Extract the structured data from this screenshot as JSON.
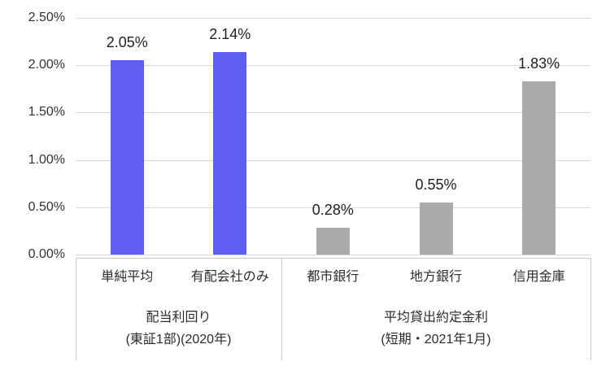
{
  "chart_data": {
    "type": "bar",
    "title": "",
    "xlabel": "",
    "ylabel": "",
    "ylim": [
      0,
      2.5
    ],
    "grid": true,
    "legend": "none",
    "value_format": "percent",
    "yticks": [
      {
        "label": "2.50%",
        "value": 2.5
      },
      {
        "label": "2.00%",
        "value": 2.0
      },
      {
        "label": "1.50%",
        "value": 1.5
      },
      {
        "label": "1.00%",
        "value": 1.0
      },
      {
        "label": "0.50%",
        "value": 0.5
      },
      {
        "label": "0.00%",
        "value": 0.0
      }
    ],
    "groups": [
      {
        "label_lines": [
          "配当利回り",
          "(東証1部)(2020年)"
        ],
        "bar_color": "#5e5ef5",
        "bars": [
          {
            "category": "単純平均",
            "value": 2.05,
            "label": "2.05%"
          },
          {
            "category": "有配会社のみ",
            "value": 2.14,
            "label": "2.14%"
          }
        ]
      },
      {
        "label_lines": [
          "平均貸出約定金利",
          "(短期・2021年1月)"
        ],
        "bar_color": "#aca9a9",
        "bars": [
          {
            "category": "都市銀行",
            "value": 0.28,
            "label": "0.28%"
          },
          {
            "category": "地方銀行",
            "value": 0.55,
            "label": "0.55%"
          },
          {
            "category": "信用金庫",
            "value": 1.83,
            "label": "1.83%"
          }
        ]
      }
    ],
    "colors": {
      "series_dividend_yield": "#5e5ef5",
      "series_lending_rate": "#aca9a9",
      "gridline": "#d9d9d9",
      "axis_frame": "#c9c9c9",
      "text": "#2b2b2b"
    }
  }
}
